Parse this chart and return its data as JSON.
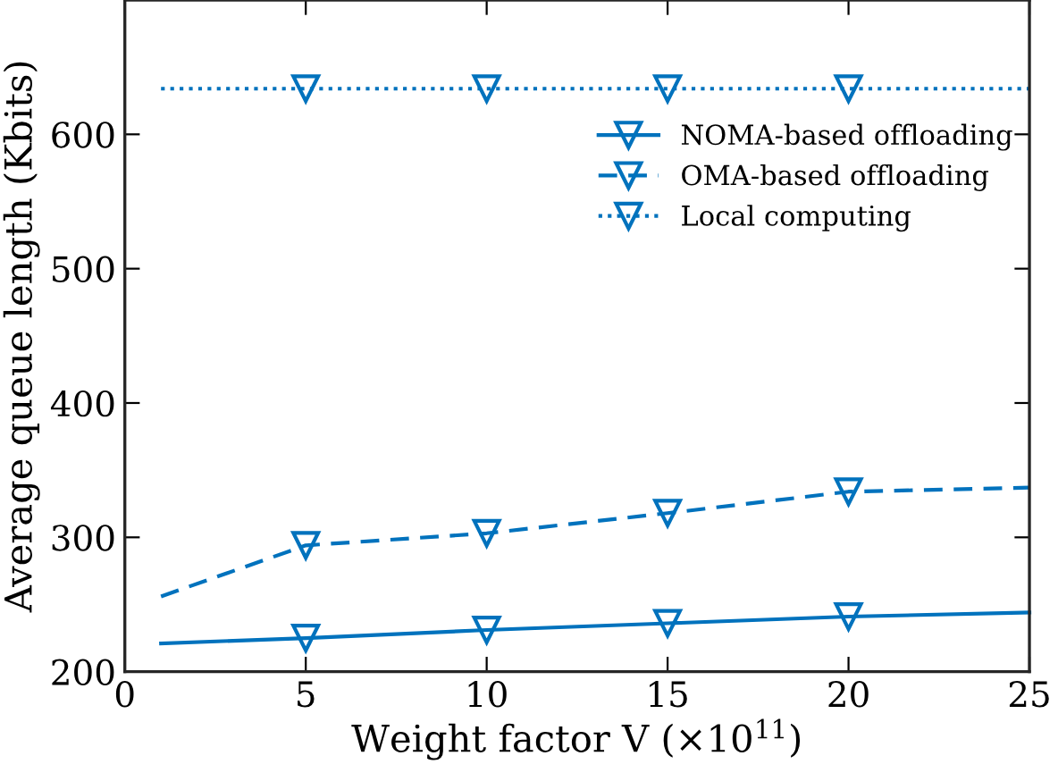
{
  "chart_data": {
    "type": "line",
    "xlabel": "Weight factor V (×10$^{11}$)",
    "ylabel": "Average queue length (Kbits)",
    "x": [
      1,
      5,
      10,
      15,
      20,
      25
    ],
    "series": [
      {
        "name": "NOMA-based offloading",
        "color": "#0072bd",
        "line_style": "solid",
        "values": [
          221,
          225,
          231,
          236,
          241,
          244
        ]
      },
      {
        "name": "OMA-based offloading",
        "color": "#0072bd",
        "line_style": "dashed",
        "values": [
          256,
          294,
          303,
          318,
          334,
          337
        ]
      },
      {
        "name": "Local computing",
        "color": "#0072bd",
        "line_style": "dotted",
        "values": [
          634,
          634,
          634,
          634,
          634,
          634
        ]
      }
    ],
    "marker": "triangle",
    "xlim": [
      0,
      25
    ],
    "ylim": [
      200,
      700
    ],
    "xticks": [
      0,
      5,
      10,
      15,
      20,
      25
    ],
    "yticks": [
      200,
      300,
      400,
      500,
      600
    ],
    "grid": false,
    "legend": "top right"
  }
}
